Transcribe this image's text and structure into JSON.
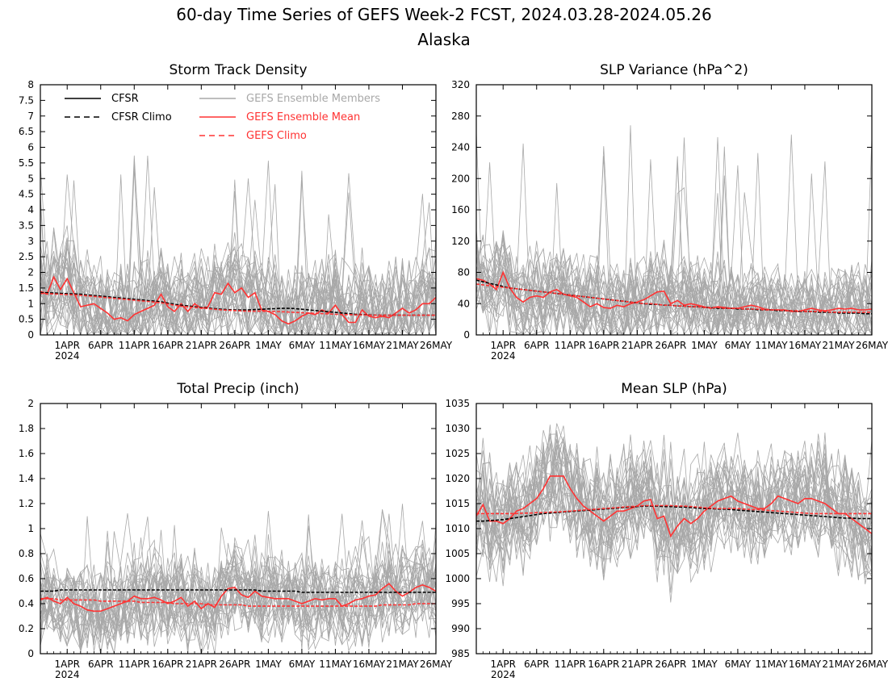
{
  "figure": {
    "title": "60-day Time Series of GEFS Week-2 FCST, 2024.03.28-2024.05.26",
    "subtitle": "Alaska"
  },
  "colors": {
    "cfsr": "#000000",
    "members": "#a8a8a8",
    "ens_mean": "#ff3333",
    "gefs_climo": "#ff3333"
  },
  "x_ticks": {
    "labels": [
      "1APR",
      "6APR",
      "11APR",
      "16APR",
      "21APR",
      "26APR",
      "1MAY",
      "6MAY",
      "11MAY",
      "16MAY",
      "21MAY",
      "26MAY"
    ],
    "day_index": [
      4,
      9,
      14,
      19,
      24,
      29,
      34,
      39,
      44,
      49,
      54,
      59
    ],
    "year_label": "2024"
  },
  "legend": {
    "cfsr": "CFSR",
    "cfsr_climo": "CFSR Climo",
    "members": "GEFS Ensemble Members",
    "ens_mean": "GEFS Ensemble Mean",
    "gefs_climo": "GEFS Climo"
  },
  "chart_data": [
    {
      "type": "line",
      "title": "Storm Track Density",
      "x_start": "2024-03-28",
      "n_days": 60,
      "ylim": [
        0,
        8
      ],
      "yticks": [
        0,
        0.5,
        1,
        1.5,
        2,
        2.5,
        3,
        3.5,
        4,
        4.5,
        5,
        5.5,
        6,
        6.5,
        7,
        7.5,
        8
      ],
      "ytick_labels": [
        "0",
        "0.5",
        "1",
        "1.5",
        "2",
        "2.5",
        "3",
        "3.5",
        "4",
        "4.5",
        "5",
        "5.5",
        "6",
        "6.5",
        "7",
        "7.5",
        "8"
      ],
      "members_spread_approx": {
        "low": 0.1,
        "high": 3.0,
        "peak_max": 5.8
      },
      "series": [
        {
          "name": "GEFS Ensemble Mean",
          "key": "ens_mean",
          "values": [
            1.4,
            1.3,
            1.85,
            1.45,
            1.8,
            1.35,
            0.9,
            0.95,
            1.0,
            0.85,
            0.7,
            0.5,
            0.55,
            0.45,
            0.65,
            0.75,
            0.85,
            0.95,
            1.3,
            0.9,
            0.75,
            1.0,
            0.75,
            1.0,
            0.85,
            0.9,
            1.35,
            1.3,
            1.65,
            1.35,
            1.5,
            1.2,
            1.35,
            0.8,
            0.75,
            0.65,
            0.45,
            0.35,
            0.45,
            0.6,
            0.7,
            0.65,
            0.8,
            0.7,
            0.95,
            0.65,
            0.4,
            0.4,
            0.8,
            0.6,
            0.55,
            0.6,
            0.55,
            0.7,
            0.85,
            0.7,
            0.8,
            1.0,
            1.0,
            1.2
          ]
        },
        {
          "name": "CFSR Climo",
          "key": "cfsr_climo",
          "values": [
            1.35,
            1.35,
            1.34,
            1.33,
            1.32,
            1.31,
            1.3,
            1.28,
            1.26,
            1.24,
            1.22,
            1.2,
            1.18,
            1.16,
            1.14,
            1.12,
            1.1,
            1.08,
            1.06,
            1.02,
            0.98,
            0.95,
            0.93,
            0.9,
            0.88,
            0.86,
            0.84,
            0.82,
            0.81,
            0.8,
            0.8,
            0.8,
            0.81,
            0.82,
            0.83,
            0.84,
            0.85,
            0.85,
            0.84,
            0.82,
            0.8,
            0.78,
            0.76,
            0.74,
            0.72,
            0.7,
            0.68,
            0.66,
            0.65,
            0.64,
            0.63,
            0.63,
            0.63,
            0.63,
            0.63,
            0.63,
            0.63,
            0.63,
            0.63,
            0.63
          ]
        },
        {
          "name": "GEFS Climo",
          "key": "gefs_climo",
          "values": [
            1.33,
            1.32,
            1.31,
            1.3,
            1.29,
            1.28,
            1.27,
            1.25,
            1.23,
            1.21,
            1.19,
            1.17,
            1.15,
            1.13,
            1.11,
            1.09,
            1.07,
            1.05,
            1.03,
            0.99,
            0.95,
            0.92,
            0.9,
            0.88,
            0.86,
            0.84,
            0.82,
            0.8,
            0.79,
            0.78,
            0.77,
            0.76,
            0.76,
            0.76,
            0.75,
            0.75,
            0.74,
            0.73,
            0.72,
            0.71,
            0.7,
            0.69,
            0.68,
            0.67,
            0.66,
            0.65,
            0.65,
            0.64,
            0.64,
            0.63,
            0.63,
            0.63,
            0.63,
            0.63,
            0.63,
            0.63,
            0.63,
            0.63,
            0.63,
            0.63
          ]
        }
      ]
    },
    {
      "type": "line",
      "title": "SLP Variance (hPa^2)",
      "x_start": "2024-03-28",
      "n_days": 60,
      "ylim": [
        0,
        320
      ],
      "yticks": [
        0,
        40,
        80,
        120,
        160,
        200,
        240,
        280,
        320
      ],
      "ytick_labels": [
        "0",
        "40",
        "80",
        "120",
        "160",
        "200",
        "240",
        "280",
        "320"
      ],
      "members_spread_approx": {
        "low": 15,
        "high": 110,
        "peak_max": 270
      },
      "series": [
        {
          "name": "GEFS Ensemble Mean",
          "key": "ens_mean",
          "values": [
            72,
            70,
            65,
            58,
            80,
            60,
            48,
            42,
            48,
            50,
            48,
            55,
            58,
            52,
            50,
            48,
            42,
            36,
            40,
            35,
            34,
            38,
            36,
            40,
            42,
            45,
            50,
            55,
            56,
            40,
            44,
            38,
            40,
            38,
            36,
            34,
            36,
            35,
            34,
            34,
            36,
            38,
            36,
            33,
            32,
            32,
            32,
            30,
            30,
            32,
            34,
            32,
            31,
            32,
            34,
            33,
            34,
            32,
            32,
            33
          ]
        },
        {
          "name": "CFSR Climo",
          "key": "cfsr_climo",
          "values": [
            70,
            68,
            66,
            64,
            62,
            60,
            59,
            58,
            57,
            56,
            55,
            54,
            53,
            52,
            51,
            50,
            49,
            48,
            47,
            46,
            45,
            44,
            43,
            42,
            41,
            40,
            39,
            39,
            38,
            38,
            37,
            37,
            36,
            36,
            35,
            35,
            34,
            34,
            34,
            33,
            33,
            33,
            32,
            32,
            32,
            31,
            31,
            31,
            30,
            30,
            30,
            29,
            29,
            29,
            28,
            28,
            28,
            28,
            27,
            27
          ]
        },
        {
          "name": "GEFS Climo",
          "key": "gefs_climo",
          "values": [
            65,
            64,
            63,
            62,
            61,
            60,
            59,
            58,
            57,
            56,
            55,
            54,
            53,
            52,
            51,
            50,
            49,
            48,
            47,
            46,
            45,
            44,
            43,
            42,
            41,
            40,
            40,
            39,
            38,
            38,
            37,
            37,
            36,
            36,
            35,
            35,
            35,
            34,
            34,
            34,
            33,
            33,
            33,
            32,
            32,
            32,
            31,
            31,
            31,
            30,
            30,
            30,
            30,
            29,
            29,
            29,
            29,
            29,
            29,
            29
          ]
        }
      ]
    },
    {
      "type": "line",
      "title": "Total Precip (inch)",
      "x_start": "2024-03-28",
      "n_days": 60,
      "ylim": [
        0,
        2
      ],
      "yticks": [
        0,
        0.2,
        0.4,
        0.6,
        0.8,
        1,
        1.2,
        1.4,
        1.6,
        1.8,
        2
      ],
      "ytick_labels": [
        "0",
        "0.2",
        "0.4",
        "0.6",
        "0.8",
        "1",
        "1.2",
        "1.4",
        "1.6",
        "1.8",
        "2"
      ],
      "members_spread_approx": {
        "low": 0.15,
        "high": 0.75,
        "peak_max": 1.2
      },
      "series": [
        {
          "name": "GEFS Ensemble Mean",
          "key": "ens_mean",
          "values": [
            0.43,
            0.45,
            0.42,
            0.4,
            0.45,
            0.4,
            0.38,
            0.35,
            0.34,
            0.34,
            0.36,
            0.38,
            0.4,
            0.42,
            0.46,
            0.44,
            0.44,
            0.45,
            0.43,
            0.4,
            0.42,
            0.45,
            0.38,
            0.42,
            0.36,
            0.4,
            0.37,
            0.46,
            0.52,
            0.53,
            0.47,
            0.45,
            0.5,
            0.46,
            0.45,
            0.44,
            0.44,
            0.44,
            0.42,
            0.4,
            0.42,
            0.44,
            0.43,
            0.44,
            0.44,
            0.38,
            0.4,
            0.43,
            0.44,
            0.46,
            0.47,
            0.52,
            0.56,
            0.5,
            0.46,
            0.49,
            0.53,
            0.55,
            0.53,
            0.5
          ]
        },
        {
          "name": "CFSR Climo",
          "key": "cfsr_climo",
          "values": [
            0.5,
            0.5,
            0.5,
            0.51,
            0.51,
            0.51,
            0.51,
            0.51,
            0.51,
            0.51,
            0.51,
            0.51,
            0.51,
            0.51,
            0.51,
            0.51,
            0.51,
            0.51,
            0.51,
            0.51,
            0.51,
            0.51,
            0.51,
            0.51,
            0.51,
            0.51,
            0.51,
            0.51,
            0.51,
            0.51,
            0.51,
            0.51,
            0.51,
            0.5,
            0.5,
            0.5,
            0.5,
            0.5,
            0.5,
            0.49,
            0.49,
            0.49,
            0.49,
            0.49,
            0.49,
            0.49,
            0.49,
            0.49,
            0.49,
            0.49,
            0.49,
            0.49,
            0.49,
            0.49,
            0.49,
            0.49,
            0.49,
            0.49,
            0.49,
            0.49
          ]
        },
        {
          "name": "GEFS Climo",
          "key": "gefs_climo",
          "values": [
            0.44,
            0.44,
            0.44,
            0.43,
            0.43,
            0.43,
            0.43,
            0.43,
            0.43,
            0.42,
            0.42,
            0.42,
            0.42,
            0.42,
            0.42,
            0.41,
            0.41,
            0.41,
            0.41,
            0.41,
            0.4,
            0.4,
            0.4,
            0.4,
            0.4,
            0.39,
            0.39,
            0.39,
            0.39,
            0.39,
            0.39,
            0.38,
            0.38,
            0.38,
            0.38,
            0.38,
            0.38,
            0.38,
            0.38,
            0.38,
            0.38,
            0.38,
            0.38,
            0.38,
            0.38,
            0.38,
            0.38,
            0.38,
            0.38,
            0.38,
            0.38,
            0.39,
            0.39,
            0.39,
            0.39,
            0.39,
            0.4,
            0.4,
            0.4,
            0.4
          ]
        }
      ]
    },
    {
      "type": "line",
      "title": "Mean SLP (hPa)",
      "x_start": "2024-03-28",
      "n_days": 60,
      "ylim": [
        985,
        1035
      ],
      "yticks": [
        985,
        990,
        995,
        1000,
        1005,
        1010,
        1015,
        1020,
        1025,
        1030,
        1035
      ],
      "ytick_labels": [
        "985",
        "990",
        "995",
        "1000",
        "1005",
        "1010",
        "1015",
        "1020",
        "1025",
        "1030",
        "1035"
      ],
      "members_spread_approx": {
        "low": 1004,
        "high": 1022,
        "peak_max": 1030
      },
      "series": [
        {
          "name": "GEFS Ensemble Mean",
          "key": "ens_mean",
          "values": [
            1012.5,
            1014.8,
            1011.5,
            1011.5,
            1011,
            1012,
            1013.5,
            1014,
            1015,
            1016,
            1018,
            1020.5,
            1020.5,
            1020.5,
            1018,
            1016,
            1014.5,
            1013.5,
            1012.5,
            1011.5,
            1012.5,
            1013.5,
            1013.5,
            1014,
            1014.5,
            1015.5,
            1015.8,
            1012,
            1012.5,
            1008.5,
            1010.5,
            1012,
            1011,
            1012,
            1013.5,
            1014.5,
            1015.5,
            1016,
            1016.5,
            1015.5,
            1015,
            1014.5,
            1014,
            1014,
            1015,
            1016.5,
            1016,
            1015.5,
            1015,
            1016,
            1016,
            1015.5,
            1015,
            1014,
            1013,
            1013,
            1012,
            1011,
            1010,
            1009
          ]
        },
        {
          "name": "CFSR Climo",
          "key": "cfsr_climo",
          "values": [
            1011.5,
            1011.5,
            1011.6,
            1011.7,
            1011.8,
            1012,
            1012.2,
            1012.4,
            1012.6,
            1012.8,
            1013,
            1013.1,
            1013.2,
            1013.3,
            1013.4,
            1013.5,
            1013.6,
            1013.7,
            1013.8,
            1013.9,
            1014,
            1014.1,
            1014.2,
            1014.3,
            1014.4,
            1014.5,
            1014.5,
            1014.5,
            1014.4,
            1014.4,
            1014.3,
            1014.3,
            1014.2,
            1014.1,
            1014,
            1014,
            1013.9,
            1013.9,
            1013.8,
            1013.7,
            1013.6,
            1013.5,
            1013.4,
            1013.3,
            1013.2,
            1013.1,
            1013,
            1012.9,
            1012.8,
            1012.7,
            1012.6,
            1012.5,
            1012.4,
            1012.3,
            1012.2,
            1012.1,
            1012.1,
            1012,
            1012,
            1012
          ]
        },
        {
          "name": "GEFS Climo",
          "key": "gefs_climo",
          "values": [
            1013,
            1013,
            1013,
            1013,
            1013,
            1013,
            1013,
            1013.1,
            1013.1,
            1013.2,
            1013.2,
            1013.3,
            1013.3,
            1013.4,
            1013.5,
            1013.6,
            1013.7,
            1013.8,
            1013.9,
            1014,
            1014.1,
            1014.2,
            1014.3,
            1014.4,
            1014.5,
            1014.6,
            1014.6,
            1014.6,
            1014.6,
            1014.6,
            1014.5,
            1014.5,
            1014.4,
            1014.3,
            1014.2,
            1014.1,
            1014,
            1014,
            1014,
            1014,
            1013.9,
            1013.8,
            1013.8,
            1013.7,
            1013.6,
            1013.5,
            1013.4,
            1013.3,
            1013.2,
            1013.1,
            1013,
            1013,
            1013,
            1013,
            1013,
            1013,
            1013,
            1013,
            1013,
            1013
          ]
        }
      ]
    }
  ]
}
